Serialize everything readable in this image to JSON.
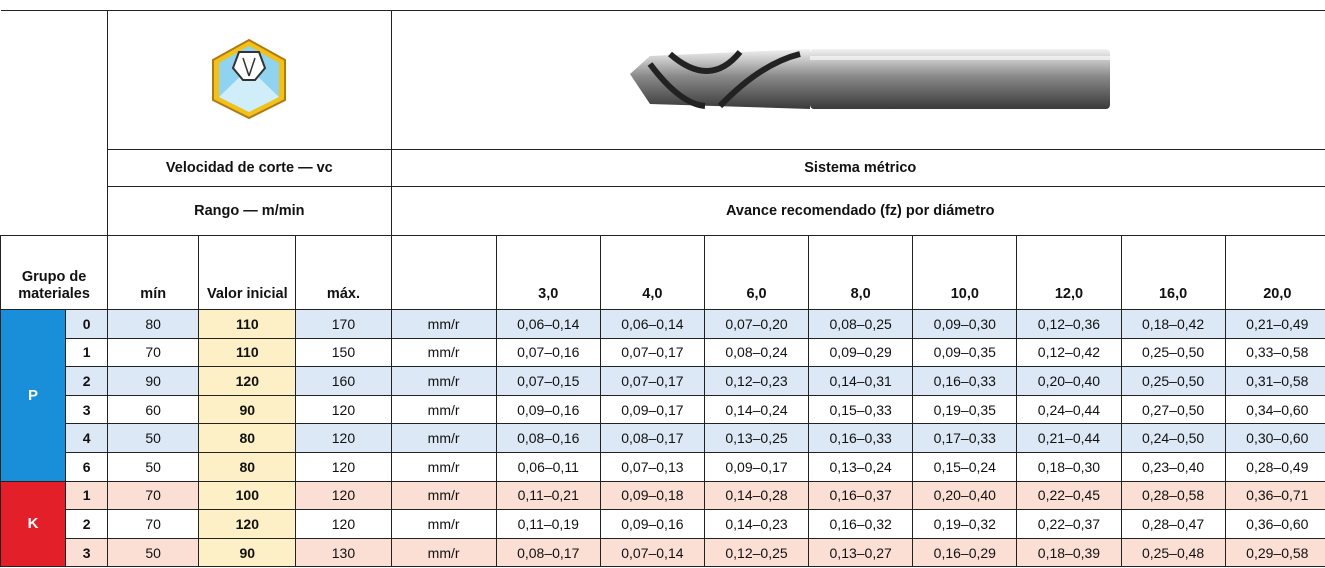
{
  "header": {
    "speed_title": "Velocidad de corte — vc",
    "speed_range": "Rango — m/min",
    "feed_title": "Sistema métrico",
    "feed_subtitle": "Avance recomendado (fz) por diámetro",
    "group_label": "Grupo de materiales",
    "min": "mín",
    "initial": "Valor inicial",
    "max": "máx.",
    "diameters": [
      "3,0",
      "4,0",
      "6,0",
      "8,0",
      "10,0",
      "12,0",
      "16,0",
      "20,0"
    ]
  },
  "groups": [
    {
      "material": "P",
      "color": "#1a8fd9",
      "rows": [
        {
          "sub": 0,
          "min": 80,
          "initial": 110,
          "max": 170,
          "unit": "mm/r",
          "feeds": [
            "0,06–0,14",
            "0,06–0,14",
            "0,07–0,20",
            "0,08–0,25",
            "0,09–0,30",
            "0,12–0,36",
            "0,18–0,42",
            "0,21–0,49"
          ]
        },
        {
          "sub": 1,
          "min": 70,
          "initial": 110,
          "max": 150,
          "unit": "mm/r",
          "feeds": [
            "0,07–0,16",
            "0,07–0,17",
            "0,08–0,24",
            "0,09–0,29",
            "0,09–0,35",
            "0,12–0,42",
            "0,25–0,50",
            "0,33–0,58"
          ]
        },
        {
          "sub": 2,
          "min": 90,
          "initial": 120,
          "max": 160,
          "unit": "mm/r",
          "feeds": [
            "0,07–0,15",
            "0,07–0,17",
            "0,12–0,23",
            "0,14–0,31",
            "0,16–0,33",
            "0,20–0,40",
            "0,25–0,50",
            "0,31–0,58"
          ]
        },
        {
          "sub": 3,
          "min": 60,
          "initial": 90,
          "max": 120,
          "unit": "mm/r",
          "feeds": [
            "0,09–0,16",
            "0,09–0,17",
            "0,14–0,24",
            "0,15–0,33",
            "0,19–0,35",
            "0,24–0,44",
            "0,27–0,50",
            "0,34–0,60"
          ]
        },
        {
          "sub": 4,
          "min": 50,
          "initial": 80,
          "max": 120,
          "unit": "mm/r",
          "feeds": [
            "0,08–0,16",
            "0,08–0,17",
            "0,13–0,25",
            "0,16–0,33",
            "0,17–0,33",
            "0,21–0,44",
            "0,24–0,50",
            "0,30–0,60"
          ]
        },
        {
          "sub": 6,
          "min": 50,
          "initial": 80,
          "max": 120,
          "unit": "mm/r",
          "feeds": [
            "0,06–0,11",
            "0,07–0,13",
            "0,09–0,17",
            "0,13–0,24",
            "0,15–0,24",
            "0,18–0,30",
            "0,23–0,40",
            "0,28–0,49"
          ]
        }
      ]
    },
    {
      "material": "K",
      "color": "#e3202a",
      "rows": [
        {
          "sub": 1,
          "min": 70,
          "initial": 100,
          "max": 120,
          "unit": "mm/r",
          "feeds": [
            "0,11–0,21",
            "0,09–0,18",
            "0,14–0,28",
            "0,16–0,37",
            "0,20–0,40",
            "0,22–0,45",
            "0,28–0,58",
            "0,36–0,71"
          ]
        },
        {
          "sub": 2,
          "min": 70,
          "initial": 120,
          "max": 120,
          "unit": "mm/r",
          "feeds": [
            "0,11–0,19",
            "0,09–0,16",
            "0,14–0,23",
            "0,16–0,32",
            "0,19–0,32",
            "0,22–0,37",
            "0,28–0,47",
            "0,36–0,60"
          ]
        },
        {
          "sub": 3,
          "min": 50,
          "initial": 90,
          "max": 130,
          "unit": "mm/r",
          "feeds": [
            "0,08–0,17",
            "0,07–0,14",
            "0,12–0,25",
            "0,13–0,27",
            "0,16–0,29",
            "0,18–0,39",
            "0,25–0,48",
            "0,29–0,58"
          ]
        }
      ]
    }
  ]
}
